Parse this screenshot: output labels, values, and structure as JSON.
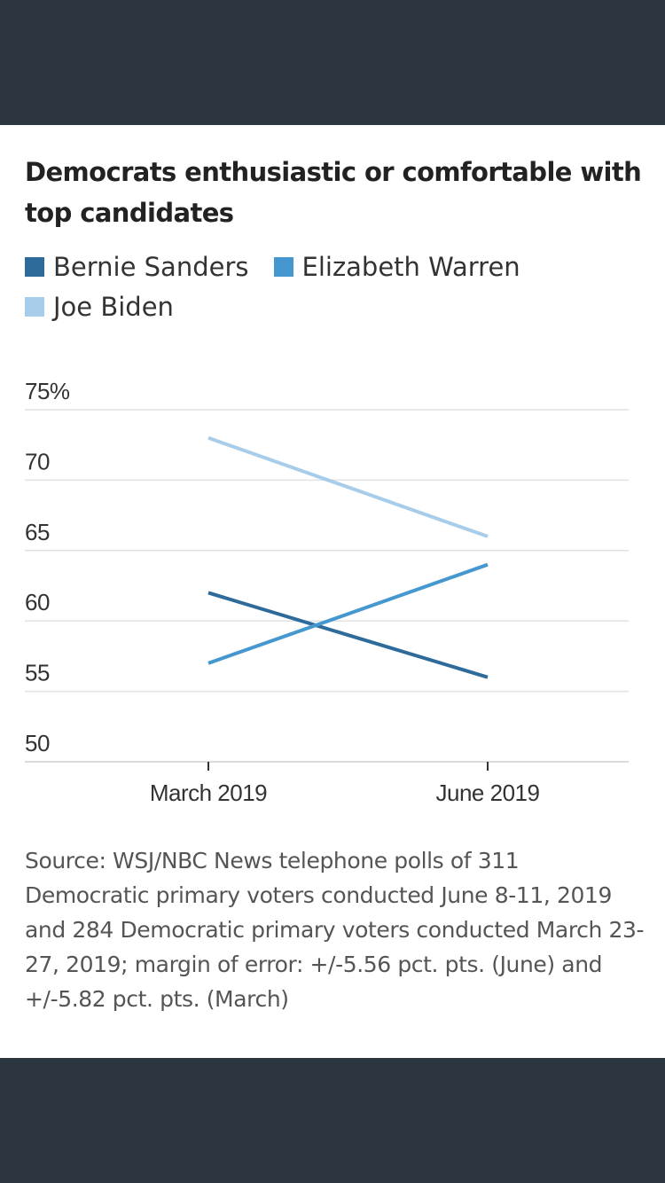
{
  "chart_data": {
    "type": "line",
    "title": "Democrats enthusiastic or comfortable with top candidates",
    "categories": [
      "March 2019",
      "June 2019"
    ],
    "series": [
      {
        "name": "Bernie Sanders",
        "values": [
          62,
          56
        ],
        "color": "#2f6b9a"
      },
      {
        "name": "Elizabeth Warren",
        "values": [
          57,
          64
        ],
        "color": "#4597d0"
      },
      {
        "name": "Joe Biden",
        "values": [
          73,
          66
        ],
        "color": "#a7cdea"
      }
    ],
    "ylim": [
      50,
      75
    ],
    "yticks": [
      50,
      55,
      60,
      65,
      70,
      75
    ],
    "ytick_labels": [
      "50",
      "55",
      "60",
      "65",
      "70",
      "75%"
    ],
    "grid": true,
    "legend": "top-left",
    "source": "Source: WSJ/NBC News telephone polls of 311 Democratic primary voters conducted June 8-11, 2019 and 284 Democratic primary voters conducted March 23-27, 2019; margin of error: +/-5.56 pct. pts. (June) and +/-5.82 pct. pts. (March)"
  }
}
